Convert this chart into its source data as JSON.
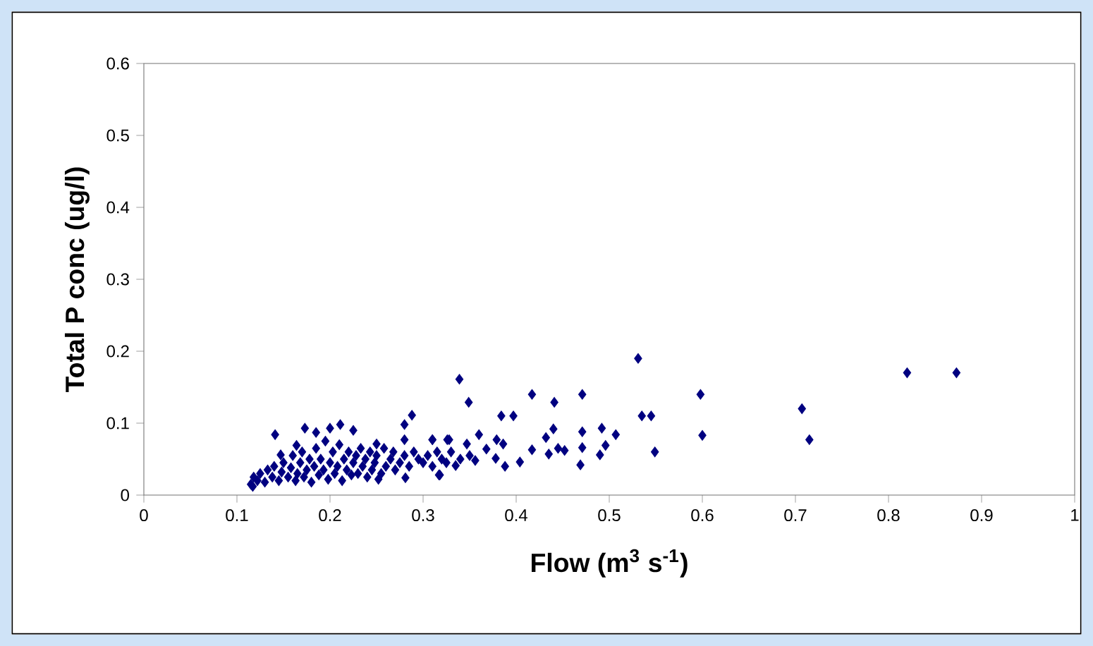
{
  "chart_data": {
    "type": "scatter",
    "xlabel": "Flow (m$^{3}$ s$^{-1}$)",
    "ylabel": "Total P conc (ug/l)",
    "xlim": [
      0,
      1
    ],
    "ylim": [
      0,
      0.6
    ],
    "xticks": [
      0,
      0.1,
      0.2,
      0.3,
      0.4,
      0.5,
      0.6,
      0.7,
      0.8,
      0.9,
      1
    ],
    "yticks": [
      0,
      0.1,
      0.2,
      0.3,
      0.4,
      0.5,
      0.6
    ],
    "grid": false,
    "marker": "diamond",
    "series": [
      {
        "color": "#000080",
        "x": [
          0.82,
          0.873,
          0.707,
          0.715,
          0.598,
          0.6,
          0.531,
          0.535,
          0.545,
          0.549,
          0.339,
          0.349,
          0.417,
          0.441,
          0.471,
          0.384,
          0.397,
          0.44,
          0.432,
          0.471,
          0.492,
          0.507,
          0.496,
          0.49,
          0.471,
          0.469,
          0.452,
          0.445,
          0.435,
          0.417,
          0.404,
          0.388,
          0.378,
          0.386,
          0.379,
          0.36,
          0.368,
          0.356,
          0.347,
          0.335,
          0.317,
          0.31,
          0.328,
          0.141,
          0.173,
          0.185,
          0.2,
          0.211,
          0.225,
          0.28,
          0.288,
          0.28,
          0.31,
          0.326,
          0.117,
          0.147,
          0.164,
          0.25,
          0.252,
          0.281,
          0.318,
          0.115,
          0.118,
          0.122,
          0.125,
          0.13,
          0.133,
          0.138,
          0.14,
          0.145,
          0.148,
          0.15,
          0.155,
          0.158,
          0.16,
          0.163,
          0.165,
          0.168,
          0.17,
          0.172,
          0.175,
          0.178,
          0.18,
          0.183,
          0.185,
          0.188,
          0.19,
          0.193,
          0.195,
          0.198,
          0.2,
          0.203,
          0.205,
          0.208,
          0.21,
          0.213,
          0.215,
          0.218,
          0.22,
          0.223,
          0.225,
          0.228,
          0.23,
          0.233,
          0.235,
          0.238,
          0.24,
          0.243,
          0.245,
          0.248,
          0.25,
          0.255,
          0.258,
          0.26,
          0.265,
          0.268,
          0.27,
          0.275,
          0.28,
          0.285,
          0.29,
          0.295,
          0.3,
          0.305,
          0.31,
          0.315,
          0.32,
          0.325,
          0.33,
          0.34,
          0.35
        ],
        "values": [
          0.17,
          0.17,
          0.12,
          0.077,
          0.14,
          0.083,
          0.19,
          0.11,
          0.11,
          0.06,
          0.161,
          0.129,
          0.14,
          0.129,
          0.14,
          0.11,
          0.11,
          0.092,
          0.08,
          0.088,
          0.093,
          0.084,
          0.069,
          0.056,
          0.066,
          0.042,
          0.062,
          0.065,
          0.057,
          0.063,
          0.046,
          0.04,
          0.051,
          0.071,
          0.077,
          0.084,
          0.064,
          0.048,
          0.071,
          0.041,
          0.028,
          0.077,
          0.077,
          0.084,
          0.093,
          0.087,
          0.093,
          0.098,
          0.09,
          0.098,
          0.111,
          0.077,
          0.077,
          0.077,
          0.012,
          0.056,
          0.069,
          0.071,
          0.022,
          0.024,
          0.028,
          0.015,
          0.025,
          0.02,
          0.03,
          0.018,
          0.035,
          0.025,
          0.04,
          0.02,
          0.032,
          0.045,
          0.025,
          0.038,
          0.055,
          0.02,
          0.03,
          0.045,
          0.06,
          0.025,
          0.035,
          0.05,
          0.018,
          0.04,
          0.065,
          0.028,
          0.05,
          0.035,
          0.075,
          0.022,
          0.045,
          0.06,
          0.03,
          0.04,
          0.07,
          0.02,
          0.05,
          0.035,
          0.06,
          0.028,
          0.045,
          0.055,
          0.03,
          0.065,
          0.04,
          0.05,
          0.025,
          0.06,
          0.035,
          0.045,
          0.055,
          0.03,
          0.065,
          0.04,
          0.05,
          0.06,
          0.035,
          0.045,
          0.055,
          0.04,
          0.06,
          0.05,
          0.045,
          0.055,
          0.04,
          0.06,
          0.05,
          0.045,
          0.06,
          0.05,
          0.055
        ]
      }
    ]
  }
}
